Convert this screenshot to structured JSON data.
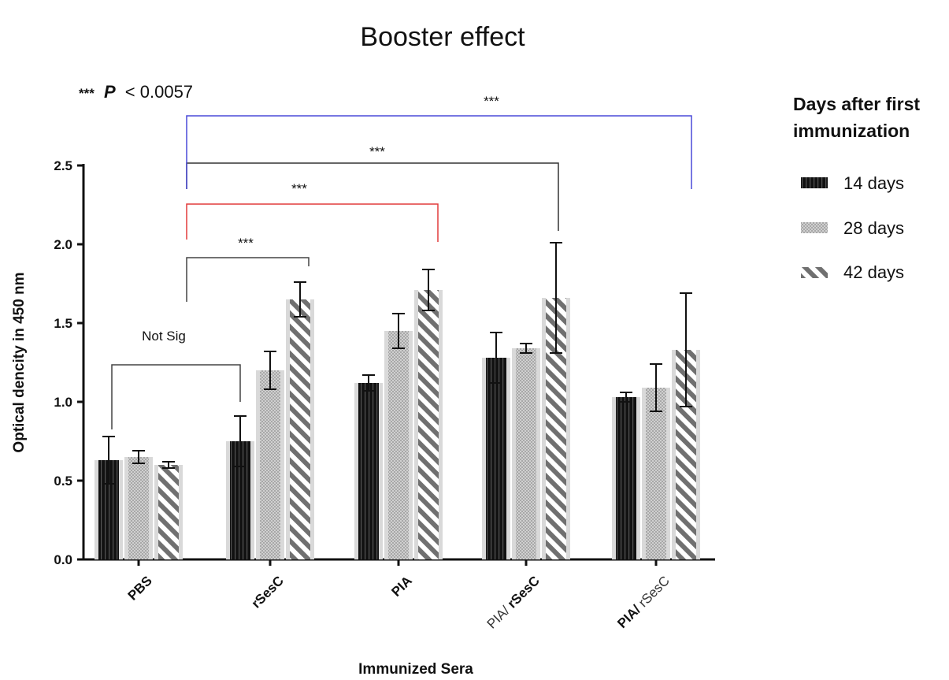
{
  "chart_data": {
    "type": "bar",
    "title": "Booster effect",
    "significance_note": {
      "stars": "***",
      "p_symbol": "P",
      "rest": "< 0.0057"
    },
    "xlabel": "Immunized Sera",
    "ylabel": "Optical dencity in 450 nm",
    "ylim": [
      0,
      2.5
    ],
    "yticks": [
      "0.0",
      "0.5",
      "1.0",
      "1.5",
      "2.0",
      "2.5"
    ],
    "categories": [
      {
        "parts": [
          {
            "text": "PBS",
            "style": "bold"
          }
        ]
      },
      {
        "parts": [
          {
            "text": "rSesC",
            "style": "bold"
          }
        ]
      },
      {
        "parts": [
          {
            "text": "PIA",
            "style": "bold"
          }
        ]
      },
      {
        "parts": [
          {
            "text": "PIA/ ",
            "style": "light"
          },
          {
            "text": "rSesC",
            "style": "bold"
          }
        ]
      },
      {
        "parts": [
          {
            "text": "PIA/ ",
            "style": "bold"
          },
          {
            "text": "rSesC",
            "style": "light"
          }
        ]
      }
    ],
    "series": [
      {
        "name": "14 days",
        "pattern": "stripes-vertical",
        "color": "#111111",
        "values": [
          0.63,
          0.75,
          1.12,
          1.28,
          1.03
        ],
        "errors": [
          0.15,
          0.16,
          0.05,
          0.16,
          0.03
        ]
      },
      {
        "name": "28 days",
        "pattern": "dots",
        "color": "#9a9a9a",
        "values": [
          0.65,
          1.2,
          1.45,
          1.34,
          1.09
        ],
        "errors": [
          0.04,
          0.12,
          0.11,
          0.03,
          0.15
        ]
      },
      {
        "name": "42 days",
        "pattern": "hatch-diagonal",
        "color": "#6e6e6e",
        "values": [
          0.6,
          1.65,
          1.71,
          1.66,
          1.33
        ],
        "errors": [
          0.02,
          0.11,
          0.13,
          0.35,
          0.36
        ]
      }
    ],
    "legend": {
      "title_lines": [
        "Days after first",
        "immunization"
      ],
      "placement": "right"
    },
    "comparisons": [
      {
        "label": "Not Sig",
        "from": 0,
        "to": 1,
        "color": "#444444"
      },
      {
        "label": "***",
        "from": 1,
        "to": 1,
        "color": "#444444"
      },
      {
        "label": "***",
        "from": 1,
        "to": 2,
        "color": "#e23b3b"
      },
      {
        "label": "***",
        "from": 1,
        "to": 3,
        "color": "#333333"
      },
      {
        "label": "***",
        "from": 1,
        "to": 4,
        "color": "#4a4ad8"
      }
    ]
  }
}
